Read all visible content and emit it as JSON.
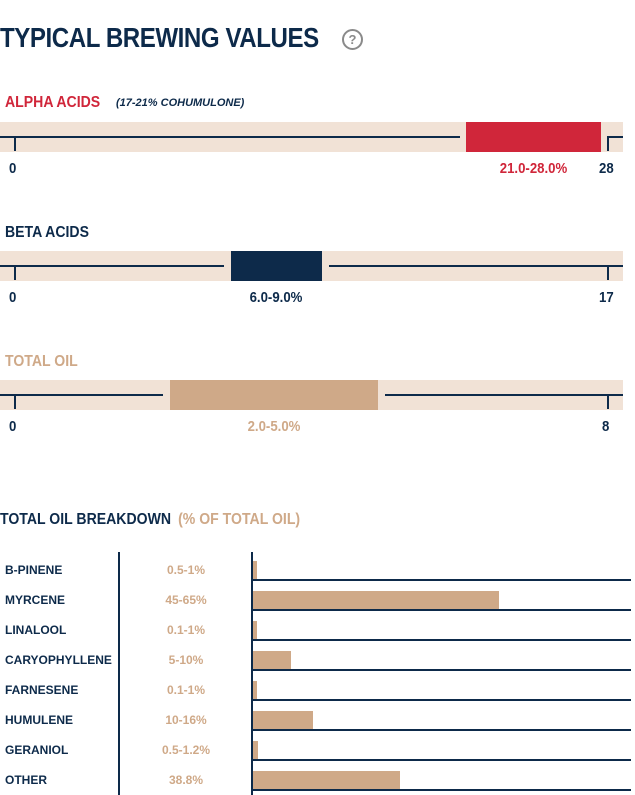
{
  "title": "TYPICAL BREWING VALUES",
  "help_icon": "question-circle-icon",
  "colors": {
    "navy": "#0d2a4a",
    "red": "#d0263a",
    "tan": "#cfa988",
    "track": "#f1e2d6"
  },
  "alpha": {
    "label": "ALPHA ACIDS",
    "sublabel": "(17-21% COHUMULONE)",
    "min": "0",
    "max": "28",
    "range": "21.0-28.0%",
    "low": 21.0,
    "high": 28.0,
    "scale_max": 28
  },
  "beta": {
    "label": "BETA ACIDS",
    "min": "0",
    "max": "17",
    "range": "6.0-9.0%",
    "low": 6.0,
    "high": 9.0,
    "scale_max": 17
  },
  "oil": {
    "label": "TOTAL OIL",
    "min": "0",
    "max": "8",
    "range": "2.0-5.0%",
    "low": 2.0,
    "high": 5.0,
    "scale_max": 8
  },
  "breakdown": {
    "title": "TOTAL OIL BREAKDOWN",
    "subtitle": "(% OF TOTAL OIL)",
    "rows": [
      {
        "name": "B-PINENE",
        "value": "0.5-1%",
        "level": 1
      },
      {
        "name": "MYRCENE",
        "value": "45-65%",
        "level": 65
      },
      {
        "name": "LINALOOL",
        "value": "0.1-1%",
        "level": 1
      },
      {
        "name": "CARYOPHYLLENE",
        "value": "5-10%",
        "level": 10
      },
      {
        "name": "FARNESENE",
        "value": "0.1-1%",
        "level": 1
      },
      {
        "name": "HUMULENE",
        "value": "10-16%",
        "level": 16
      },
      {
        "name": "GERANIOL",
        "value": "0.5-1.2%",
        "level": 1.2
      },
      {
        "name": "OTHER",
        "value": "38.8%",
        "level": 38.8
      }
    ]
  }
}
